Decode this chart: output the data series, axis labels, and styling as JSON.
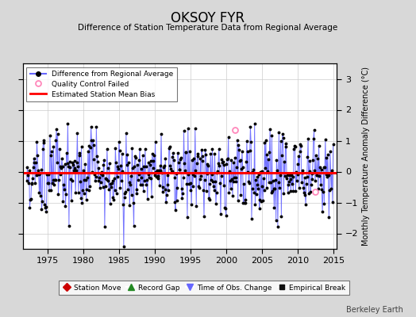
{
  "title": "OKSOY FYR",
  "subtitle": "Difference of Station Temperature Data from Regional Average",
  "ylabel": "Monthly Temperature Anomaly Difference (°C)",
  "bias": -0.05,
  "xlim": [
    1971.5,
    2015.5
  ],
  "ylim": [
    -2.5,
    3.5
  ],
  "yticks": [
    -2,
    -1,
    0,
    1,
    2,
    3
  ],
  "xticks": [
    1975,
    1980,
    1985,
    1990,
    1995,
    2000,
    2005,
    2010,
    2015
  ],
  "line_color": "#6666ff",
  "dot_color": "#000000",
  "bias_color": "#ff0000",
  "bg_color": "#ffffff",
  "outer_bg": "#d8d8d8",
  "grid_color": "#cccccc",
  "watermark": "Berkeley Earth",
  "qc_fail_points": [
    [
      2001.25,
      1.35
    ],
    [
      2012.5,
      -0.65
    ]
  ],
  "seed": 42
}
